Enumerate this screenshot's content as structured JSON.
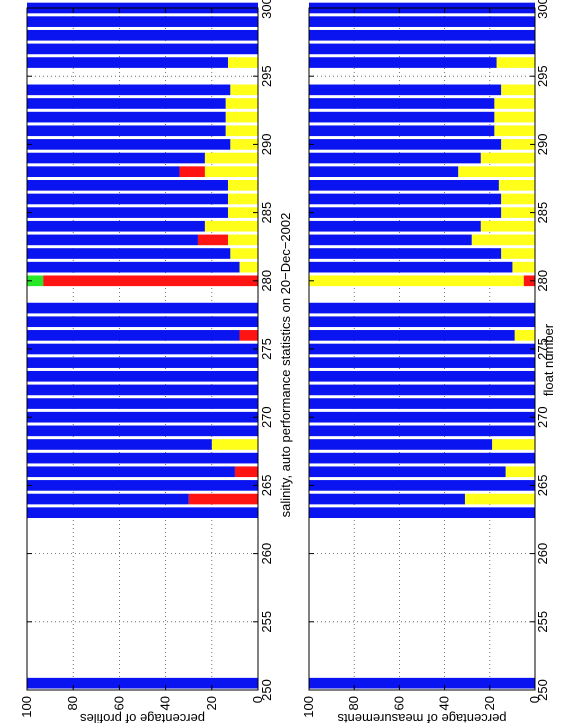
{
  "figure": {
    "title": "salinity, auto performance statistics on 20−Dec−2002",
    "xlabel": "float number"
  },
  "colors": {
    "blue": "#0a14f0",
    "yellow": "#ffff1a",
    "red": "#ff1414",
    "green": "#28e628",
    "grid": "#555555"
  },
  "chart_data": [
    {
      "type": "bar",
      "orientation": "stacked-horizontal",
      "ylabel": "percentage of profiles",
      "xlim": [
        250,
        300
      ],
      "ylim": [
        0,
        100
      ],
      "x_ticks": [
        "250",
        "255",
        "260",
        "265",
        "270",
        "275",
        "280",
        "285",
        "290",
        "295",
        "300"
      ],
      "y_ticks": [
        "100",
        "80",
        "60",
        "40",
        "20",
        "0"
      ],
      "grid": true,
      "stack_order": [
        "yellow",
        "red",
        "green",
        "blue"
      ],
      "floats": [
        {
          "x": 250.5,
          "blue": 100,
          "yellow": 0,
          "red": 0,
          "green": 0
        },
        {
          "x": 263,
          "blue": 100,
          "yellow": 0,
          "red": 0,
          "green": 0
        },
        {
          "x": 264,
          "blue": 70,
          "yellow": 0,
          "red": 30,
          "green": 0
        },
        {
          "x": 265,
          "blue": 100,
          "yellow": 0,
          "red": 0,
          "green": 0
        },
        {
          "x": 266,
          "blue": 90,
          "yellow": 0,
          "red": 10,
          "green": 0
        },
        {
          "x": 267,
          "blue": 100,
          "yellow": 0,
          "red": 0,
          "green": 0
        },
        {
          "x": 268,
          "blue": 80,
          "yellow": 20,
          "red": 0,
          "green": 0
        },
        {
          "x": 269,
          "blue": 100,
          "yellow": 0,
          "red": 0,
          "green": 0
        },
        {
          "x": 270,
          "blue": 100,
          "yellow": 0,
          "red": 0,
          "green": 0
        },
        {
          "x": 271,
          "blue": 100,
          "yellow": 0,
          "red": 0,
          "green": 0
        },
        {
          "x": 272,
          "blue": 100,
          "yellow": 0,
          "red": 0,
          "green": 0
        },
        {
          "x": 273,
          "blue": 100,
          "yellow": 0,
          "red": 0,
          "green": 0
        },
        {
          "x": 274,
          "blue": 100,
          "yellow": 0,
          "red": 0,
          "green": 0
        },
        {
          "x": 275,
          "blue": 100,
          "yellow": 0,
          "red": 0,
          "green": 0
        },
        {
          "x": 276,
          "blue": 92,
          "yellow": 0,
          "red": 8,
          "green": 0
        },
        {
          "x": 277,
          "blue": 100,
          "yellow": 0,
          "red": 0,
          "green": 0
        },
        {
          "x": 278,
          "blue": 100,
          "yellow": 0,
          "red": 0,
          "green": 0
        },
        {
          "x": 280,
          "blue": 0,
          "yellow": 0,
          "red": 93,
          "green": 7
        },
        {
          "x": 281,
          "blue": 92,
          "yellow": 8,
          "red": 0,
          "green": 0
        },
        {
          "x": 282,
          "blue": 88,
          "yellow": 12,
          "red": 0,
          "green": 0
        },
        {
          "x": 283,
          "blue": 74,
          "yellow": 13,
          "red": 13,
          "green": 0
        },
        {
          "x": 284,
          "blue": 77,
          "yellow": 23,
          "red": 0,
          "green": 0
        },
        {
          "x": 285,
          "blue": 87,
          "yellow": 13,
          "red": 0,
          "green": 0
        },
        {
          "x": 286,
          "blue": 87,
          "yellow": 13,
          "red": 0,
          "green": 0
        },
        {
          "x": 287,
          "blue": 87,
          "yellow": 13,
          "red": 0,
          "green": 0
        },
        {
          "x": 288,
          "blue": 66,
          "yellow": 23,
          "red": 11,
          "green": 0
        },
        {
          "x": 289,
          "blue": 77,
          "yellow": 23,
          "red": 0,
          "green": 0
        },
        {
          "x": 290,
          "blue": 88,
          "yellow": 12,
          "red": 0,
          "green": 0
        },
        {
          "x": 291,
          "blue": 86,
          "yellow": 14,
          "red": 0,
          "green": 0
        },
        {
          "x": 292,
          "blue": 86,
          "yellow": 14,
          "red": 0,
          "green": 0
        },
        {
          "x": 293,
          "blue": 86,
          "yellow": 14,
          "red": 0,
          "green": 0
        },
        {
          "x": 294,
          "blue": 88,
          "yellow": 12,
          "red": 0,
          "green": 0
        },
        {
          "x": 296,
          "blue": 87,
          "yellow": 13,
          "red": 0,
          "green": 0
        },
        {
          "x": 297,
          "blue": 100,
          "yellow": 0,
          "red": 0,
          "green": 0
        },
        {
          "x": 298,
          "blue": 100,
          "yellow": 0,
          "red": 0,
          "green": 0
        },
        {
          "x": 299,
          "blue": 100,
          "yellow": 0,
          "red": 0,
          "green": 0
        },
        {
          "x": 300,
          "blue": 100,
          "yellow": 0,
          "red": 0,
          "green": 0
        }
      ]
    },
    {
      "type": "bar",
      "orientation": "stacked-horizontal",
      "ylabel": "percentage of measurements",
      "xlim": [
        250,
        300
      ],
      "ylim": [
        0,
        100
      ],
      "x_ticks": [
        "250",
        "255",
        "260",
        "265",
        "270",
        "275",
        "280",
        "285",
        "290",
        "295",
        "300"
      ],
      "y_ticks": [
        "100",
        "80",
        "60",
        "40",
        "20",
        "0"
      ],
      "grid": true,
      "stack_order": [
        "red",
        "yellow",
        "blue"
      ],
      "floats": [
        {
          "x": 250.5,
          "blue": 100,
          "yellow": 0,
          "red": 0
        },
        {
          "x": 263,
          "blue": 100,
          "yellow": 0,
          "red": 0
        },
        {
          "x": 264,
          "blue": 69,
          "yellow": 31,
          "red": 0
        },
        {
          "x": 265,
          "blue": 100,
          "yellow": 0,
          "red": 0
        },
        {
          "x": 266,
          "blue": 87,
          "yellow": 13,
          "red": 0
        },
        {
          "x": 267,
          "blue": 100,
          "yellow": 0,
          "red": 0
        },
        {
          "x": 268,
          "blue": 81,
          "yellow": 19,
          "red": 0
        },
        {
          "x": 269,
          "blue": 100,
          "yellow": 0,
          "red": 0
        },
        {
          "x": 270,
          "blue": 100,
          "yellow": 0,
          "red": 0
        },
        {
          "x": 271,
          "blue": 100,
          "yellow": 0,
          "red": 0
        },
        {
          "x": 272,
          "blue": 100,
          "yellow": 0,
          "red": 0
        },
        {
          "x": 273,
          "blue": 100,
          "yellow": 0,
          "red": 0
        },
        {
          "x": 274,
          "blue": 100,
          "yellow": 0,
          "red": 0
        },
        {
          "x": 275,
          "blue": 100,
          "yellow": 0,
          "red": 0
        },
        {
          "x": 276,
          "blue": 91,
          "yellow": 9,
          "red": 0
        },
        {
          "x": 277,
          "blue": 100,
          "yellow": 0,
          "red": 0
        },
        {
          "x": 278,
          "blue": 100,
          "yellow": 0,
          "red": 0
        },
        {
          "x": 280,
          "blue": 0,
          "yellow": 95,
          "red": 5
        },
        {
          "x": 281,
          "blue": 90,
          "yellow": 10,
          "red": 0
        },
        {
          "x": 282,
          "blue": 85,
          "yellow": 15,
          "red": 0
        },
        {
          "x": 283,
          "blue": 72,
          "yellow": 28,
          "red": 0
        },
        {
          "x": 284,
          "blue": 76,
          "yellow": 24,
          "red": 0
        },
        {
          "x": 285,
          "blue": 85,
          "yellow": 15,
          "red": 0
        },
        {
          "x": 286,
          "blue": 85,
          "yellow": 15,
          "red": 0
        },
        {
          "x": 287,
          "blue": 84,
          "yellow": 16,
          "red": 0
        },
        {
          "x": 288,
          "blue": 66,
          "yellow": 34,
          "red": 0
        },
        {
          "x": 289,
          "blue": 76,
          "yellow": 24,
          "red": 0
        },
        {
          "x": 290,
          "blue": 85,
          "yellow": 15,
          "red": 0
        },
        {
          "x": 291,
          "blue": 82,
          "yellow": 18,
          "red": 0
        },
        {
          "x": 292,
          "blue": 82,
          "yellow": 18,
          "red": 0
        },
        {
          "x": 293,
          "blue": 82,
          "yellow": 18,
          "red": 0
        },
        {
          "x": 294,
          "blue": 85,
          "yellow": 15,
          "red": 0
        },
        {
          "x": 296,
          "blue": 83,
          "yellow": 17,
          "red": 0
        },
        {
          "x": 297,
          "blue": 100,
          "yellow": 0,
          "red": 0
        },
        {
          "x": 298,
          "blue": 100,
          "yellow": 0,
          "red": 0
        },
        {
          "x": 299,
          "blue": 100,
          "yellow": 0,
          "red": 0
        },
        {
          "x": 300,
          "blue": 100,
          "yellow": 0,
          "red": 0
        }
      ]
    }
  ]
}
